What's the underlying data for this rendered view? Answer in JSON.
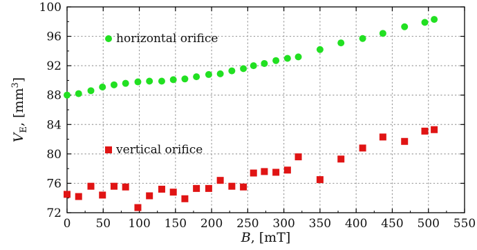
{
  "chart_data": {
    "type": "scatter",
    "xlabel": "B, [mT]",
    "ylabel": "V_E, [mm^3]",
    "xlim": [
      0,
      550
    ],
    "ylim": [
      72,
      100
    ],
    "xticks": [
      "0",
      "50",
      "100",
      "150",
      "200",
      "250",
      "300",
      "350",
      "400",
      "450",
      "500",
      "550"
    ],
    "yticks": [
      "72",
      "76",
      "80",
      "84",
      "88",
      "92",
      "96",
      "100"
    ],
    "grid": "dotted",
    "legend_placement": "in-plot (series labels)",
    "series": [
      {
        "name": "horizontal orifice",
        "marker": "circle",
        "color": "#22e022",
        "x": [
          0,
          16,
          33,
          49,
          65,
          81,
          98,
          114,
          131,
          147,
          163,
          179,
          196,
          212,
          228,
          244,
          258,
          273,
          289,
          305,
          320,
          350,
          379,
          409,
          437,
          467,
          495,
          508
        ],
        "y": [
          88.0,
          88.2,
          88.6,
          89.1,
          89.4,
          89.6,
          89.8,
          89.9,
          89.9,
          90.1,
          90.2,
          90.5,
          90.8,
          90.9,
          91.3,
          91.6,
          92.0,
          92.3,
          92.7,
          93.0,
          93.2,
          94.2,
          95.1,
          95.7,
          96.4,
          97.3,
          97.9,
          98.3
        ]
      },
      {
        "name": "vertical orifice",
        "marker": "square",
        "color": "#e01414",
        "x": [
          0,
          16,
          33,
          49,
          65,
          81,
          98,
          114,
          131,
          147,
          163,
          179,
          196,
          212,
          228,
          244,
          258,
          273,
          289,
          305,
          320,
          350,
          379,
          409,
          437,
          467,
          495,
          508
        ],
        "y": [
          74.5,
          74.2,
          75.6,
          74.4,
          75.6,
          75.5,
          72.7,
          74.3,
          75.2,
          74.8,
          73.9,
          75.3,
          75.3,
          76.4,
          75.6,
          75.5,
          77.4,
          77.6,
          77.5,
          77.8,
          79.6,
          76.5,
          79.3,
          80.8,
          82.3,
          81.7,
          83.1,
          83.3
        ]
      }
    ]
  }
}
